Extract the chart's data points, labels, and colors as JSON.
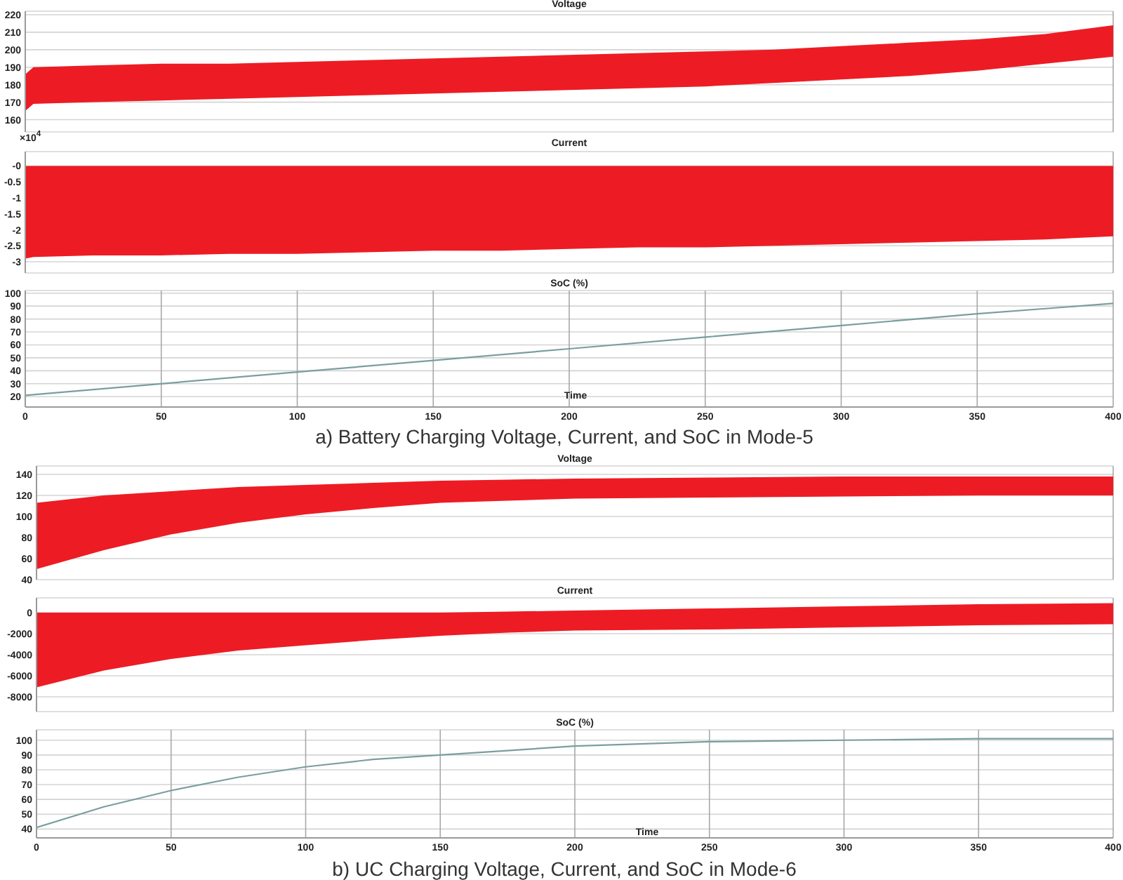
{
  "chart_data": [
    {
      "type": "line",
      "title": "Voltage",
      "x": [
        0,
        3,
        25,
        50,
        75,
        100,
        125,
        150,
        175,
        200,
        225,
        250,
        275,
        300,
        325,
        350,
        375,
        400
      ],
      "series": [
        {
          "color": "#ed1c24",
          "values": [
            null,
            null,
            null,
            null,
            null,
            null,
            null,
            null,
            null,
            null,
            null,
            null,
            null,
            null,
            null,
            null,
            null,
            null
          ],
          "lower": [
            165,
            169,
            170,
            171,
            172,
            173,
            174,
            175,
            176,
            177,
            178,
            179,
            181,
            183,
            185,
            188,
            192,
            196
          ],
          "upper": [
            186,
            190,
            191,
            192,
            192,
            193,
            194,
            195,
            196,
            197,
            198,
            199,
            200,
            202,
            204,
            206,
            209,
            214
          ]
        }
      ],
      "xlim": [
        0,
        400
      ],
      "xticks": [
        0,
        50,
        100,
        150,
        200,
        250,
        300,
        350,
        400
      ],
      "ylim": [
        153,
        222
      ],
      "yticks": [
        160,
        170,
        180,
        190,
        200,
        210,
        220
      ],
      "grid": true,
      "tick_labels": "y"
    },
    {
      "type": "line",
      "title": "Current",
      "annotations": [
        "×10$^{4}$"
      ],
      "x": [
        0,
        3,
        25,
        50,
        75,
        100,
        125,
        150,
        175,
        200,
        225,
        250,
        275,
        300,
        325,
        350,
        375,
        400
      ],
      "series": [
        {
          "color": "#ed1c24",
          "values": [
            null,
            null,
            null,
            null,
            null,
            null,
            null,
            null,
            null,
            null,
            null,
            null,
            null,
            null,
            null,
            null,
            null,
            null
          ],
          "lower": [
            -2.9,
            -2.85,
            -2.8,
            -2.8,
            -2.75,
            -2.75,
            -2.7,
            -2.65,
            -2.65,
            -2.6,
            -2.55,
            -2.55,
            -2.5,
            -2.45,
            -2.4,
            -2.35,
            -2.3,
            -2.2
          ],
          "upper": [
            0,
            0,
            0,
            0,
            0,
            0,
            0,
            0,
            0,
            0,
            0,
            0,
            0,
            0,
            0,
            0,
            0,
            0
          ]
        }
      ],
      "xlim": [
        0,
        400
      ],
      "xticks": [
        0,
        50,
        100,
        150,
        200,
        250,
        300,
        350,
        400
      ],
      "ylim": [
        -3.35,
        0.45
      ],
      "yticks": [
        -3,
        -2.5,
        -2,
        -1.5,
        -1,
        -0.5,
        {
          "value": 0,
          "label": "-0"
        }
      ],
      "grid": true,
      "tick_labels": "y"
    },
    {
      "type": "line",
      "title": "SoC (%)",
      "xlabel": "Time",
      "annotations": [
        "a) Battery Charging Voltage, Current, and SoC in Mode-5"
      ],
      "x": [
        0,
        50,
        100,
        150,
        200,
        250,
        300,
        350,
        400
      ],
      "series": [
        {
          "color": "#7a9e9f",
          "values": [
            21,
            30,
            39,
            48,
            57,
            66,
            75,
            84,
            92
          ]
        }
      ],
      "xlim": [
        0,
        400
      ],
      "xticks": [
        0,
        50,
        100,
        150,
        200,
        250,
        300,
        350,
        400
      ],
      "ylim": [
        12,
        102
      ],
      "yticks": [
        20,
        30,
        40,
        50,
        60,
        70,
        80,
        90,
        100
      ],
      "grid": true
    },
    {
      "type": "line",
      "title": "Voltage",
      "x": [
        0,
        25,
        50,
        75,
        100,
        125,
        150,
        175,
        200,
        250,
        300,
        350,
        400
      ],
      "series": [
        {
          "color": "#ed1c24",
          "values": [
            null,
            null,
            null,
            null,
            null,
            null,
            null,
            null,
            null,
            null,
            null,
            null,
            null
          ],
          "lower": [
            50,
            68,
            83,
            94,
            102,
            108,
            113,
            115,
            117,
            118,
            119,
            120,
            120
          ],
          "upper": [
            113,
            120,
            124,
            128,
            130,
            132,
            134,
            135,
            136,
            137,
            138,
            138,
            138
          ]
        }
      ],
      "xlim": [
        0,
        400
      ],
      "xticks": [
        0,
        50,
        100,
        150,
        200,
        250,
        300,
        350,
        400
      ],
      "ylim": [
        40,
        148
      ],
      "yticks": [
        40,
        60,
        80,
        100,
        120,
        140
      ],
      "grid": true,
      "tick_labels": "y"
    },
    {
      "type": "line",
      "title": "Current",
      "x": [
        0,
        25,
        50,
        75,
        100,
        125,
        150,
        175,
        200,
        250,
        300,
        350,
        400
      ],
      "series": [
        {
          "color": "#ed1c24",
          "values": [
            null,
            null,
            null,
            null,
            null,
            null,
            null,
            null,
            null,
            null,
            null,
            null,
            null
          ],
          "lower": [
            -7100,
            -5500,
            -4400,
            -3600,
            -3100,
            -2600,
            -2200,
            -1900,
            -1700,
            -1600,
            -1400,
            -1200,
            -1100
          ],
          "upper": [
            0,
            0,
            0,
            0,
            0,
            0,
            0,
            100,
            200,
            400,
            600,
            800,
            900
          ]
        }
      ],
      "xlim": [
        0,
        400
      ],
      "xticks": [
        0,
        50,
        100,
        150,
        200,
        250,
        300,
        350,
        400
      ],
      "ylim": [
        -9400,
        1400
      ],
      "yticks": [
        -8000,
        -6000,
        -4000,
        -2000,
        0
      ],
      "grid": true,
      "tick_labels": "y"
    },
    {
      "type": "line",
      "title": "SoC (%)",
      "xlabel": "Time",
      "annotations": [
        "b) UC Charging Voltage, Current, and SoC in Mode-6"
      ],
      "x": [
        0,
        25,
        50,
        75,
        100,
        125,
        150,
        175,
        200,
        250,
        300,
        350,
        400
      ],
      "series": [
        {
          "color": "#7a9e9f",
          "values": [
            41,
            55,
            66,
            75,
            82,
            87,
            90,
            93,
            96,
            99,
            100,
            101,
            101
          ]
        }
      ],
      "xlim": [
        0,
        400
      ],
      "xticks": [
        0,
        50,
        100,
        150,
        200,
        250,
        300,
        350,
        400
      ],
      "ylim": [
        34,
        107
      ],
      "yticks": [
        40,
        50,
        60,
        70,
        80,
        90,
        100
      ],
      "grid": true
    }
  ]
}
